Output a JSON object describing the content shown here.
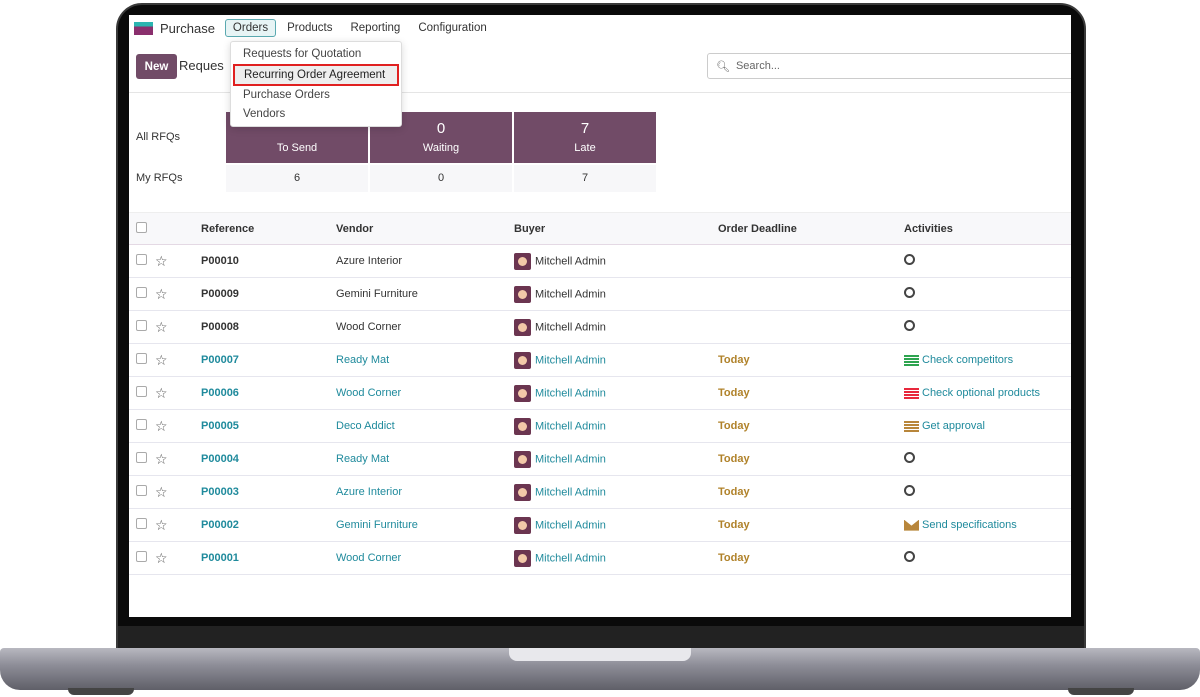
{
  "app": {
    "name": "Purchase",
    "menus": [
      "Orders",
      "Products",
      "Reporting",
      "Configuration"
    ]
  },
  "dropdown": [
    "Requests for Quotation",
    "Recurring Order Agreement",
    "Purchase Orders",
    "Vendors"
  ],
  "control": {
    "new_label": "New",
    "title": "Reques",
    "search_placeholder": "Search..."
  },
  "dashboard": {
    "row_labels": [
      "All RFQs",
      "My RFQs"
    ],
    "tiles": [
      {
        "value": "",
        "label": "To Send",
        "mine": "6"
      },
      {
        "value": "0",
        "label": "Waiting",
        "mine": "0"
      },
      {
        "value": "7",
        "label": "Late",
        "mine": "7"
      }
    ]
  },
  "table": {
    "headers": [
      "Reference",
      "Vendor",
      "Buyer",
      "Order Deadline",
      "Activities"
    ],
    "rows": [
      {
        "ref": "P00010",
        "vendor": "Azure Interior",
        "buyer": "Mitchell Admin",
        "deadline": "",
        "activity": "",
        "icon": "clock"
      },
      {
        "ref": "P00009",
        "vendor": "Gemini Furniture",
        "buyer": "Mitchell Admin",
        "deadline": "",
        "activity": "",
        "icon": "clock"
      },
      {
        "ref": "P00008",
        "vendor": "Wood Corner",
        "buyer": "Mitchell Admin",
        "deadline": "",
        "activity": "",
        "icon": "clock"
      },
      {
        "ref": "P00007",
        "vendor": "Ready Mat",
        "buyer": "Mitchell Admin",
        "deadline": "Today",
        "activity": "Check competitors",
        "icon": "todo",
        "color": "#2ea44f"
      },
      {
        "ref": "P00006",
        "vendor": "Wood Corner",
        "buyer": "Mitchell Admin",
        "deadline": "Today",
        "activity": "Check optional products",
        "icon": "todo",
        "color": "#e8283c"
      },
      {
        "ref": "P00005",
        "vendor": "Deco Addict",
        "buyer": "Mitchell Admin",
        "deadline": "Today",
        "activity": "Get approval",
        "icon": "todo",
        "color": "#b8863b"
      },
      {
        "ref": "P00004",
        "vendor": "Ready Mat",
        "buyer": "Mitchell Admin",
        "deadline": "Today",
        "activity": "",
        "icon": "clock"
      },
      {
        "ref": "P00003",
        "vendor": "Azure Interior",
        "buyer": "Mitchell Admin",
        "deadline": "Today",
        "activity": "",
        "icon": "clock"
      },
      {
        "ref": "P00002",
        "vendor": "Gemini Furniture",
        "buyer": "Mitchell Admin",
        "deadline": "Today",
        "activity": "Send specifications",
        "icon": "envelope",
        "color": "#b8863b"
      },
      {
        "ref": "P00001",
        "vendor": "Wood Corner",
        "buyer": "Mitchell Admin",
        "deadline": "Today",
        "activity": "",
        "icon": "clock"
      }
    ]
  },
  "colors": {
    "brand": "#714b67",
    "link": "#1f8a9c",
    "today": "#b0822a"
  }
}
